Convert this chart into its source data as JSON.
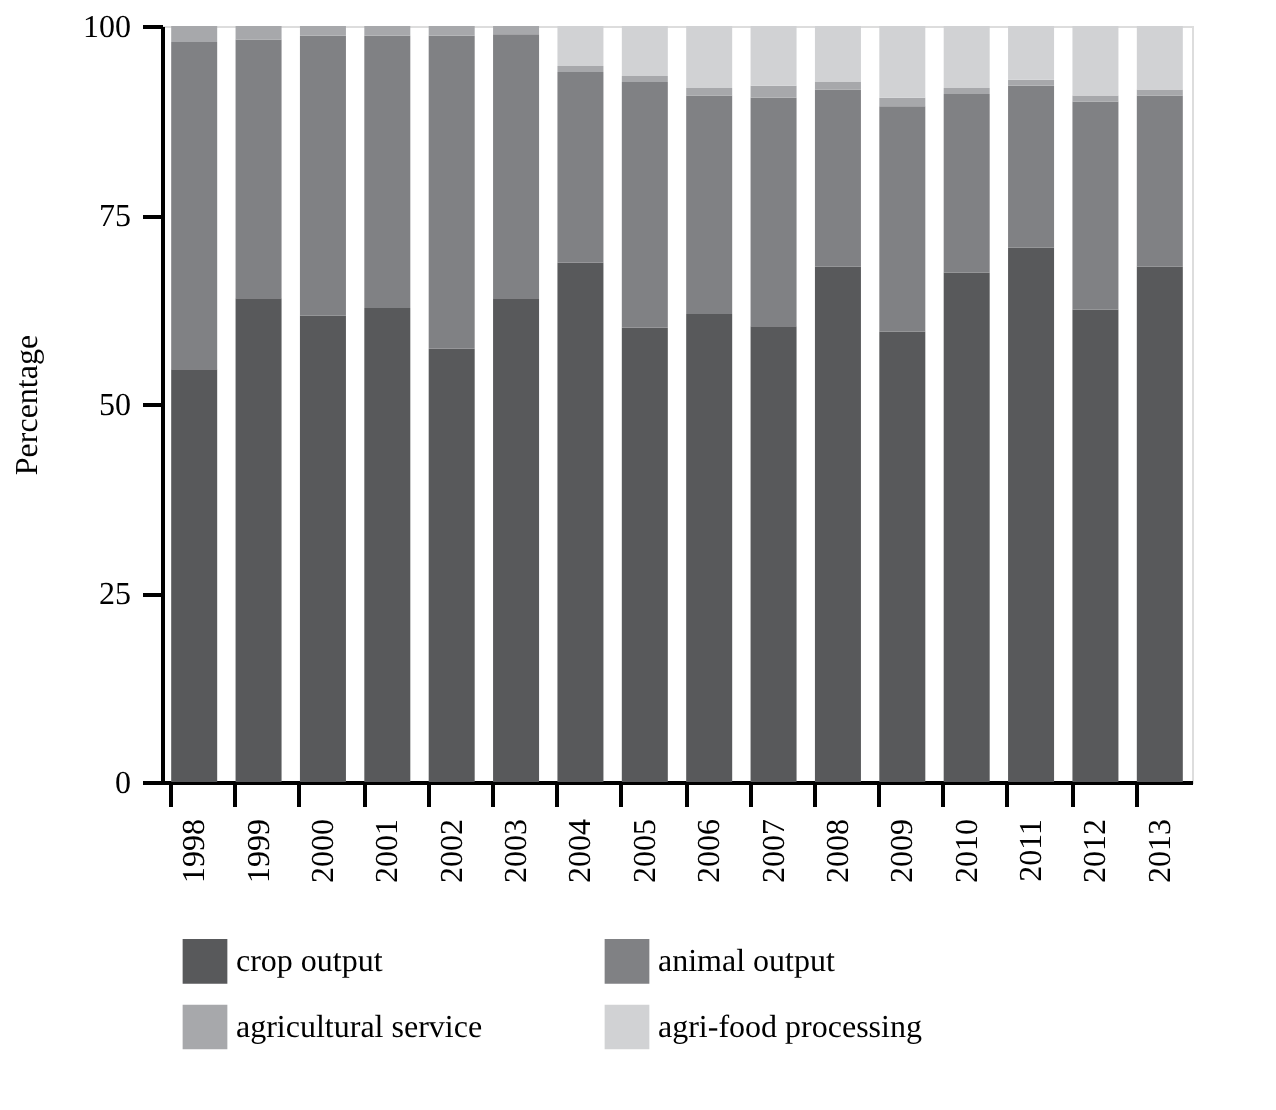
{
  "chart_data": {
    "type": "bar",
    "stacked": true,
    "ylabel": "Percentage",
    "categories": [
      "1998",
      "1999",
      "2000",
      "2001",
      "2002",
      "2003",
      "2004",
      "2005",
      "2006",
      "2007",
      "2008",
      "2009",
      "2010",
      "2011",
      "2012",
      "2013"
    ],
    "series": [
      {
        "name": "crop output",
        "color": "#58595b",
        "values": [
          54.6,
          64.0,
          61.7,
          62.7,
          57.3,
          64.0,
          68.7,
          60.1,
          61.9,
          60.3,
          68.2,
          59.6,
          67.4,
          70.7,
          62.5,
          68.2
        ]
      },
      {
        "name": "animal output",
        "color": "#808184",
        "values": [
          43.3,
          34.2,
          37.0,
          36.0,
          41.4,
          34.9,
          25.2,
          32.5,
          28.9,
          30.2,
          23.4,
          29.8,
          23.6,
          21.4,
          27.5,
          22.6
        ]
      },
      {
        "name": "agricultural service",
        "color": "#a7a8ab",
        "values": [
          2.1,
          1.8,
          1.3,
          1.3,
          1.3,
          1.1,
          0.8,
          0.8,
          1.0,
          1.6,
          1.0,
          1.1,
          0.8,
          0.8,
          0.8,
          0.8
        ]
      },
      {
        "name": "agri-food processing",
        "color": "#d1d2d4",
        "values": [
          0,
          0,
          0,
          0,
          0,
          0,
          5.3,
          6.6,
          8.2,
          7.9,
          7.4,
          9.5,
          8.2,
          7.1,
          9.2,
          8.4
        ]
      }
    ],
    "ylim": [
      0,
      100
    ],
    "yticks": [
      0,
      25,
      50,
      75,
      100
    ],
    "grid": false,
    "legend": "bottom"
  }
}
